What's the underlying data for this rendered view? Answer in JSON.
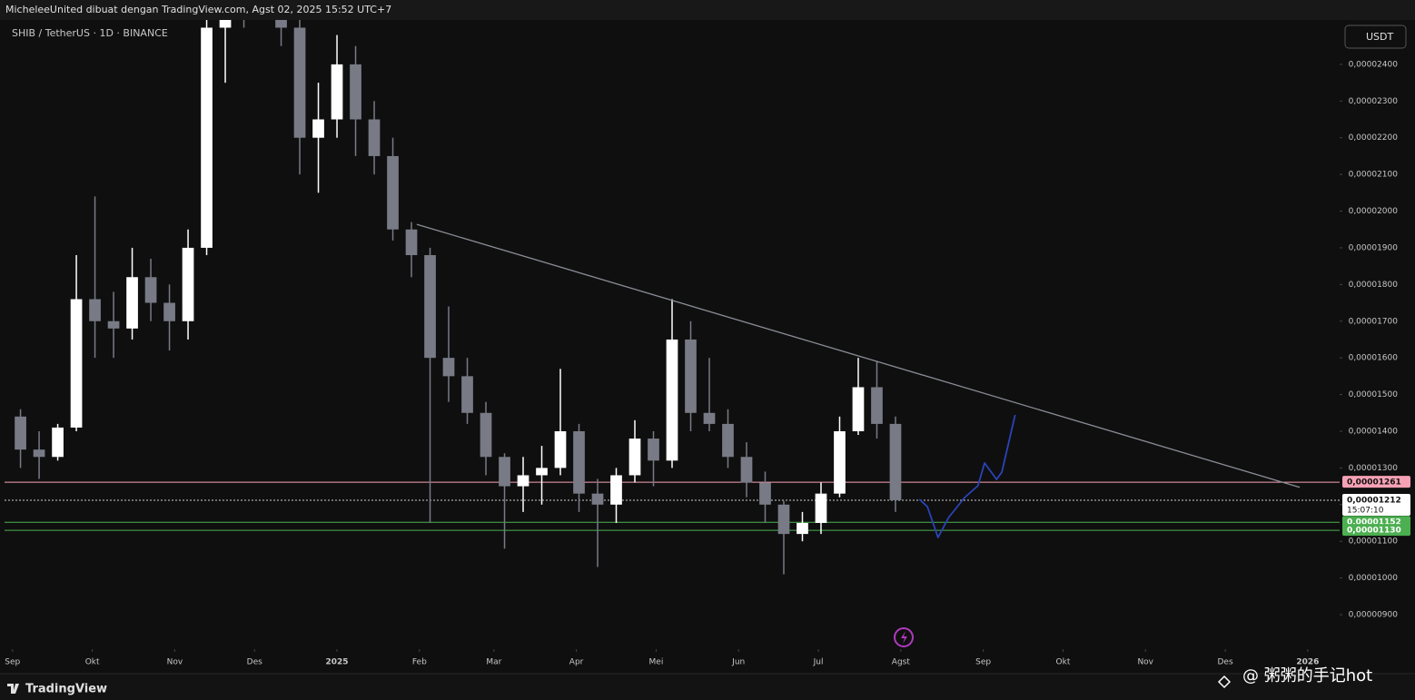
{
  "header": {
    "text": "MicheleeUnited dibuat dengan TradingView.com, Agst 02, 2025 15:52 UTC+7"
  },
  "footer": {
    "brand": "TradingView",
    "watermark": "@ 粥粥的手记hot"
  },
  "chart_data": {
    "type": "candlestick",
    "title": "SHIB / TetherUS · 1D · BINANCE",
    "currency": "USDT",
    "up_color": "#ffffff",
    "down_color": "#787b86",
    "x": [
      3,
      10,
      17,
      24,
      31,
      38,
      45,
      52,
      59,
      66,
      73,
      80,
      87,
      94,
      101,
      108,
      115,
      122,
      129,
      136,
      143,
      150,
      157,
      164,
      171,
      178,
      185,
      192,
      199,
      206,
      213,
      220,
      227,
      234,
      241,
      248,
      255,
      262,
      269,
      276,
      283,
      290,
      297,
      304,
      311,
      318,
      325,
      332
    ],
    "open": [
      1.44e-05,
      1.35e-05,
      1.33e-05,
      1.41e-05,
      1.76e-05,
      1.7e-05,
      1.68e-05,
      1.82e-05,
      1.75e-05,
      1.7e-05,
      1.9e-05,
      2.5e-05,
      2.7e-05,
      2.65e-05,
      2.6e-05,
      2.5e-05,
      2.2e-05,
      2.25e-05,
      2.4e-05,
      2.25e-05,
      2.15e-05,
      1.95e-05,
      1.88e-05,
      1.6e-05,
      1.55e-05,
      1.45e-05,
      1.33e-05,
      1.25e-05,
      1.28e-05,
      1.3e-05,
      1.4e-05,
      1.23e-05,
      1.2e-05,
      1.28e-05,
      1.38e-05,
      1.32e-05,
      1.65e-05,
      1.45e-05,
      1.42e-05,
      1.33e-05,
      1.26e-05,
      1.2e-05,
      1.12e-05,
      1.15e-05,
      1.23e-05,
      1.4e-05,
      1.52e-05,
      1.42e-05
    ],
    "high": [
      1.46e-05,
      1.4e-05,
      1.42e-05,
      1.88e-05,
      2.04e-05,
      1.78e-05,
      1.9e-05,
      1.87e-05,
      1.8e-05,
      1.95e-05,
      2.6e-05,
      3e-05,
      2.9e-05,
      2.9e-05,
      2.8e-05,
      2.55e-05,
      2.35e-05,
      2.48e-05,
      2.45e-05,
      2.3e-05,
      2.2e-05,
      1.97e-05,
      1.9e-05,
      1.74e-05,
      1.6e-05,
      1.48e-05,
      1.34e-05,
      1.33e-05,
      1.36e-05,
      1.57e-05,
      1.42e-05,
      1.27e-05,
      1.3e-05,
      1.43e-05,
      1.4e-05,
      1.76e-05,
      1.7e-05,
      1.6e-05,
      1.46e-05,
      1.37e-05,
      1.29e-05,
      1.21e-05,
      1.18e-05,
      1.26e-05,
      1.44e-05,
      1.6e-05,
      1.59e-05,
      1.44e-05
    ],
    "low": [
      1.3e-05,
      1.27e-05,
      1.32e-05,
      1.4e-05,
      1.6e-05,
      1.6e-05,
      1.65e-05,
      1.7e-05,
      1.62e-05,
      1.65e-05,
      1.88e-05,
      2.35e-05,
      2.5e-05,
      2.55e-05,
      2.45e-05,
      2.1e-05,
      2.05e-05,
      2.2e-05,
      2.15e-05,
      2.1e-05,
      1.92e-05,
      1.82e-05,
      1.15e-05,
      1.48e-05,
      1.42e-05,
      1.28e-05,
      1.08e-05,
      1.18e-05,
      1.2e-05,
      1.28e-05,
      1.18e-05,
      1.03e-05,
      1.15e-05,
      1.26e-05,
      1.25e-05,
      1.3e-05,
      1.4e-05,
      1.4e-05,
      1.3e-05,
      1.22e-05,
      1.15e-05,
      1.01e-05,
      1.1e-05,
      1.12e-05,
      1.22e-05,
      1.39e-05,
      1.38e-05,
      1.18e-05
    ],
    "close": [
      1.35e-05,
      1.33e-05,
      1.41e-05,
      1.76e-05,
      1.7e-05,
      1.68e-05,
      1.82e-05,
      1.75e-05,
      1.7e-05,
      1.9e-05,
      2.5e-05,
      2.7e-05,
      2.65e-05,
      2.6e-05,
      2.5e-05,
      2.2e-05,
      2.25e-05,
      2.4e-05,
      2.25e-05,
      2.15e-05,
      1.95e-05,
      1.88e-05,
      1.6e-05,
      1.55e-05,
      1.45e-05,
      1.33e-05,
      1.25e-05,
      1.28e-05,
      1.3e-05,
      1.4e-05,
      1.23e-05,
      1.2e-05,
      1.28e-05,
      1.38e-05,
      1.32e-05,
      1.65e-05,
      1.45e-05,
      1.42e-05,
      1.33e-05,
      1.26e-05,
      1.2e-05,
      1.12e-05,
      1.15e-05,
      1.23e-05,
      1.4e-05,
      1.52e-05,
      1.42e-05,
      1.212e-05
    ],
    "xlim": [
      -3,
      499
    ],
    "xticks": [
      {
        "value": 0,
        "label": "Sep"
      },
      {
        "value": 30,
        "label": "Okt"
      },
      {
        "value": 61,
        "label": "Nov"
      },
      {
        "value": 91,
        "label": "Des"
      },
      {
        "value": 122,
        "label": "2025"
      },
      {
        "value": 153,
        "label": "Feb"
      },
      {
        "value": 181,
        "label": "Mar"
      },
      {
        "value": 212,
        "label": "Apr"
      },
      {
        "value": 242,
        "label": "Mei"
      },
      {
        "value": 273,
        "label": "Jun"
      },
      {
        "value": 303,
        "label": "Jul"
      },
      {
        "value": 334,
        "label": "Agst"
      },
      {
        "value": 365,
        "label": "Sep"
      },
      {
        "value": 395,
        "label": "Okt"
      },
      {
        "value": 426,
        "label": "Nov"
      },
      {
        "value": 456,
        "label": "Des"
      },
      {
        "value": 487,
        "label": "2026"
      }
    ],
    "ylim": [
      8.06e-06,
      2.521e-05
    ],
    "yticks": [
      {
        "value": 9e-06,
        "label": "0,00000900"
      },
      {
        "value": 1e-05,
        "label": "0,00001000"
      },
      {
        "value": 1.1e-05,
        "label": "0,00001100"
      },
      {
        "value": 1.2e-05,
        "label": "0,00001200"
      },
      {
        "value": 1.3e-05,
        "label": "0,00001300"
      },
      {
        "value": 1.4e-05,
        "label": "0,00001400"
      },
      {
        "value": 1.5e-05,
        "label": "0,00001500"
      },
      {
        "value": 1.6e-05,
        "label": "0,00001600"
      },
      {
        "value": 1.7e-05,
        "label": "0,00001700"
      },
      {
        "value": 1.8e-05,
        "label": "0,00001800"
      },
      {
        "value": 1.9e-05,
        "label": "0,00001900"
      },
      {
        "value": 2e-05,
        "label": "0,00002000"
      },
      {
        "value": 2.1e-05,
        "label": "0,00002100"
      },
      {
        "value": 2.2e-05,
        "label": "0,00002200"
      },
      {
        "value": 2.3e-05,
        "label": "0,00002300"
      },
      {
        "value": 2.4e-05,
        "label": "0,00002400"
      }
    ],
    "price_lines": [
      {
        "value": 1.261e-05,
        "label": "0,00001261",
        "color": "#f7a1b5"
      },
      {
        "value": 1.212e-05,
        "label": "0,00001212",
        "time": "15:07:10",
        "color": "#ffffff"
      },
      {
        "value": 1.152e-05,
        "label": "0,00001152",
        "color": "#4caf50"
      },
      {
        "value": 1.13e-05,
        "label": "0,00001130",
        "color": "#4caf50"
      }
    ],
    "trendline": {
      "x": [
        152,
        484
      ],
      "y": [
        1.964e-05,
        1.247e-05
      ],
      "color": "#8a8d96"
    },
    "projection": {
      "x": [
        341,
        344,
        348,
        352,
        358,
        363,
        365.5,
        370,
        372,
        377
      ],
      "y": [
        1.2144e-05,
        1.1946e-05,
        1.1104e-05,
        1.1649e-05,
        1.2193e-05,
        1.2515e-05,
        1.3134e-05,
        1.2688e-05,
        1.2886e-05,
        1.4446e-05
      ],
      "color": "#2a44b8"
    }
  }
}
